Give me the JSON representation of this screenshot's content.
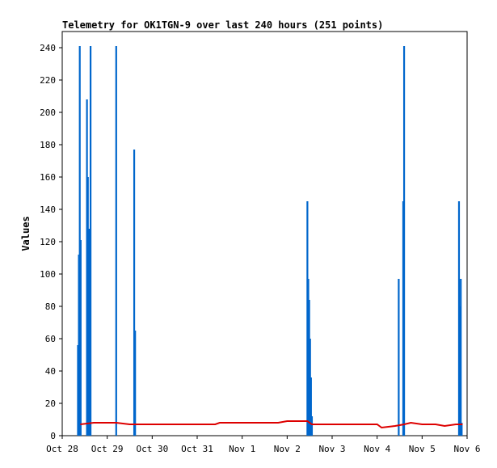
{
  "chart_data": {
    "type": "line",
    "title": "Telemetry for OK1TGN-9 over last 240 hours (251 points)",
    "xlabel": "",
    "ylabel": "Values",
    "ylim": [
      0,
      250
    ],
    "y_ticks": [
      0,
      20,
      40,
      60,
      80,
      100,
      120,
      140,
      160,
      180,
      200,
      220,
      240
    ],
    "xlim": [
      "Oct 28",
      "Nov 6"
    ],
    "x_tick_labels": [
      "Oct 28",
      "Oct 29",
      "Oct 30",
      "Oct 31",
      "Nov 1",
      "Nov 2",
      "Nov 3",
      "Nov 4",
      "Nov 5",
      "Nov 6"
    ],
    "grid": false,
    "legend": "none",
    "series": [
      {
        "color": "#0066cc",
        "style": "bars",
        "points": [
          [
            0.35,
            56
          ],
          [
            0.37,
            112
          ],
          [
            0.39,
            241
          ],
          [
            0.41,
            121
          ],
          [
            0.55,
            208
          ],
          [
            0.57,
            160
          ],
          [
            0.59,
            128
          ],
          [
            0.61,
            128
          ],
          [
            0.63,
            241
          ],
          [
            1.2,
            241
          ],
          [
            1.6,
            177
          ],
          [
            1.62,
            65
          ],
          [
            5.45,
            145
          ],
          [
            5.47,
            97
          ],
          [
            5.49,
            84
          ],
          [
            5.51,
            60
          ],
          [
            5.53,
            36
          ],
          [
            5.55,
            12
          ],
          [
            7.48,
            97
          ],
          [
            7.58,
            145
          ],
          [
            7.6,
            241
          ],
          [
            8.82,
            145
          ],
          [
            8.84,
            80
          ],
          [
            8.86,
            97
          ],
          [
            8.88,
            8
          ]
        ]
      },
      {
        "color": "#dd0000",
        "style": "line",
        "points": [
          [
            0.4,
            7
          ],
          [
            0.7,
            8
          ],
          [
            1.0,
            8
          ],
          [
            1.2,
            8
          ],
          [
            1.5,
            7
          ],
          [
            2.0,
            7
          ],
          [
            2.5,
            7
          ],
          [
            3.0,
            7
          ],
          [
            3.4,
            7
          ],
          [
            3.5,
            8
          ],
          [
            4.0,
            8
          ],
          [
            4.2,
            8
          ],
          [
            4.5,
            8
          ],
          [
            4.8,
            8
          ],
          [
            5.0,
            9
          ],
          [
            5.3,
            9
          ],
          [
            5.45,
            9
          ],
          [
            5.55,
            7
          ],
          [
            6.0,
            7
          ],
          [
            6.5,
            7
          ],
          [
            7.0,
            7
          ],
          [
            7.1,
            5
          ],
          [
            7.4,
            6
          ],
          [
            7.6,
            7
          ],
          [
            7.75,
            8
          ],
          [
            8.0,
            7
          ],
          [
            8.3,
            7
          ],
          [
            8.5,
            6
          ],
          [
            8.75,
            7
          ],
          [
            8.9,
            7
          ]
        ]
      }
    ]
  }
}
